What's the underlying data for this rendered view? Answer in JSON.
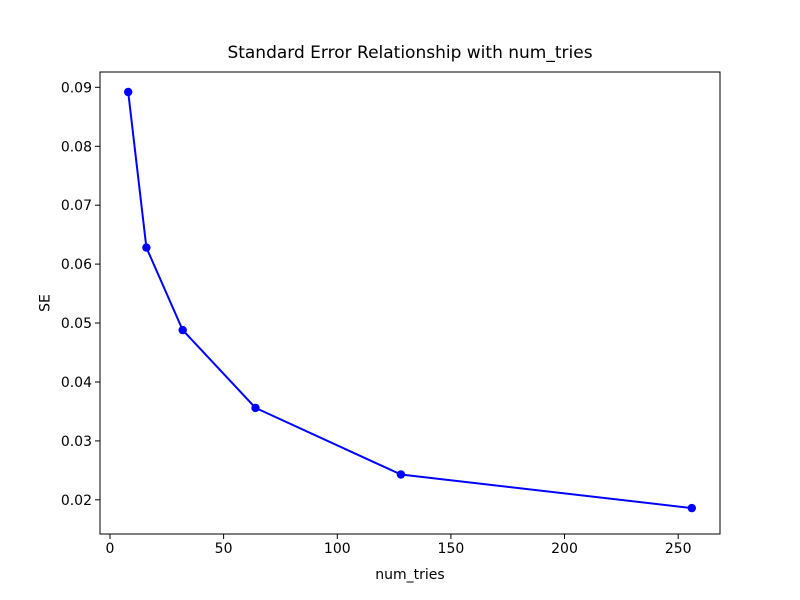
{
  "chart_data": {
    "type": "line",
    "title": "Standard Error Relationship with num_tries",
    "xlabel": "num_tries",
    "ylabel": "SE",
    "x": [
      8,
      16,
      32,
      64,
      128,
      256
    ],
    "y": [
      0.0892,
      0.0628,
      0.0488,
      0.0356,
      0.0243,
      0.0186
    ],
    "xlim": [
      -4.4,
      268.4
    ],
    "ylim": [
      0.0142,
      0.0926
    ],
    "xticks": {
      "values": [
        0,
        50,
        100,
        150,
        200,
        250
      ],
      "labels": [
        "0",
        "50",
        "100",
        "150",
        "200",
        "250"
      ]
    },
    "yticks": {
      "values": [
        0.02,
        0.03,
        0.04,
        0.05,
        0.06,
        0.07,
        0.08,
        0.09
      ],
      "labels": [
        "0.02",
        "0.03",
        "0.04",
        "0.05",
        "0.06",
        "0.07",
        "0.08",
        "0.09"
      ]
    },
    "line_color": "#0000ff",
    "marker": "o",
    "marker_color": "#0000ff",
    "background_color": "#ffffff",
    "grid": false,
    "legend_position": "none"
  }
}
